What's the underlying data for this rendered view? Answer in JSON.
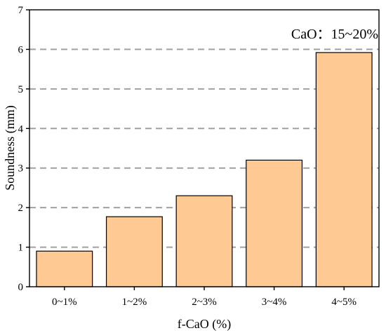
{
  "chart_data": {
    "type": "bar",
    "categories": [
      "0~1%",
      "1~2%",
      "2~3%",
      "3~4%",
      "4~5%"
    ],
    "values": [
      0.9,
      1.77,
      2.3,
      3.2,
      5.92
    ],
    "xlabel": "f-CaO (%)",
    "ylabel": "Soundness (mm)",
    "ylim": [
      0,
      7
    ],
    "yticks": [
      "0",
      "1",
      "2",
      "3",
      "4",
      "5",
      "6",
      "7"
    ],
    "annotation": "CaO：15~20%",
    "grid": "horizontal dashed",
    "colors": {
      "bar_fill": "#FFC994",
      "bar_stroke": "#000000",
      "grid": "#A0A0A0"
    }
  }
}
